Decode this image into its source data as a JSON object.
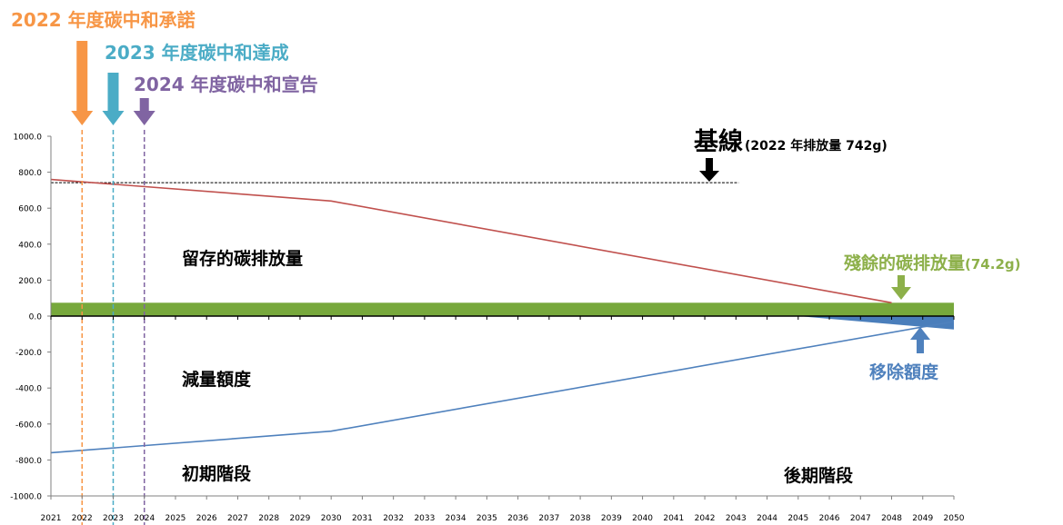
{
  "header_annotations": [
    {
      "text": "2022 年度碳中和承諾",
      "color": "#f79646"
    },
    {
      "text": "2023 年度碳中和達成",
      "color": "#4bacc6"
    },
    {
      "text": "2024 年度碳中和宣告",
      "color": "#8064a2"
    }
  ],
  "labels": {
    "baseline_big": "基線",
    "baseline_small": "(2022 年排放量 742g)",
    "retained": "留存的碳排放量",
    "reduction": "減量額度",
    "early_stage": "初期階段",
    "late_stage": "後期階段",
    "residual": "殘餘的碳排放量",
    "residual_value": "(74.2g)",
    "removal": "移除額度"
  },
  "colors": {
    "emissions": "#c0504d",
    "reduction": "#4f81bd",
    "residual_band": "#77a83c",
    "removal_fill": "#4a7ebb",
    "baseline": "#000000",
    "residual_label": "#8db04a",
    "removal_label": "#4f81bd"
  },
  "chart_data": {
    "type": "line",
    "x": [
      2021,
      2022,
      2023,
      2024,
      2025,
      2026,
      2027,
      2028,
      2029,
      2030,
      2031,
      2032,
      2033,
      2034,
      2035,
      2036,
      2037,
      2038,
      2039,
      2040,
      2041,
      2042,
      2043,
      2044,
      2045,
      2046,
      2047,
      2048,
      2049,
      2050
    ],
    "ylim": [
      -1000,
      1000
    ],
    "y_ticks": [
      "1000.0",
      "800.0",
      "600.0",
      "400.0",
      "200.0",
      "0.0",
      "-200.0",
      "-400.0",
      "-600.0",
      "-800.0",
      "-1000.0"
    ],
    "x_ticks": [
      "2021",
      "2022",
      "2023",
      "2024",
      "2025",
      "2026",
      "2027",
      "2028",
      "2029",
      "2030",
      "2031",
      "2032",
      "2033",
      "2034",
      "2035",
      "2036",
      "2037",
      "2038",
      "2039",
      "2040",
      "2041",
      "2042",
      "2043",
      "2044",
      "2045",
      "2046",
      "2047",
      "2048",
      "2049",
      "2050"
    ],
    "series": [
      {
        "name": "留存的碳排放量",
        "points": [
          [
            2021,
            760
          ],
          [
            2030,
            640
          ],
          [
            2048,
            74.2
          ]
        ]
      },
      {
        "name": "減量額度",
        "points": [
          [
            2021,
            -760
          ],
          [
            2030,
            -640
          ],
          [
            2050,
            -30
          ]
        ]
      }
    ],
    "baseline": {
      "value": 742,
      "x_end": 2043
    },
    "residual_band": {
      "value": 74.2
    },
    "removal_area": {
      "x_start": 2045,
      "x_end": 2050,
      "y_end": -74.2
    },
    "markers": [
      {
        "year": 2022,
        "color": "#f79646"
      },
      {
        "year": 2023,
        "color": "#4bacc6"
      },
      {
        "year": 2024,
        "color": "#8064a2"
      }
    ]
  }
}
